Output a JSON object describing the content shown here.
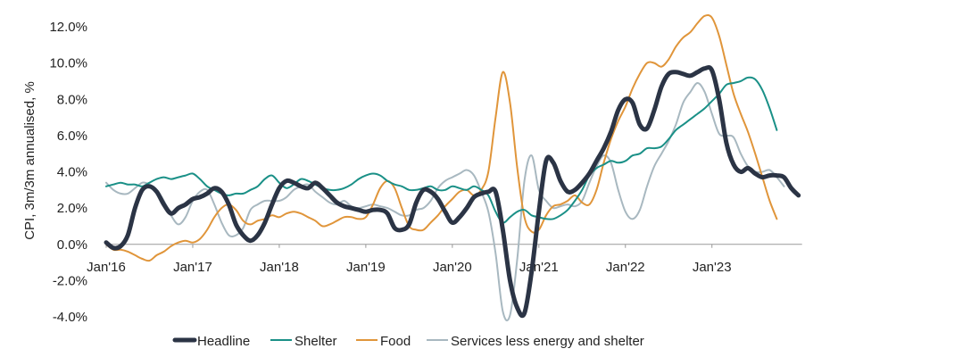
{
  "chart_data": {
    "type": "line",
    "title": "",
    "xlabel": "",
    "ylabel": "CPI, 3m/3m annualised, %",
    "ylim": [
      -4,
      12
    ],
    "yticks": [
      -4,
      -2,
      0,
      2,
      4,
      6,
      8,
      10,
      12
    ],
    "ytick_labels": [
      "-4.0%",
      "-2.0%",
      "0.0%",
      "2.0%",
      "4.0%",
      "6.0%",
      "8.0%",
      "10.0%",
      "12.0%"
    ],
    "xtick_labels": [
      "Jan'16",
      "Jan'17",
      "Jan'18",
      "Jan'19",
      "Jan'20",
      "Jan'21",
      "Jan'22",
      "Jan'23"
    ],
    "x_start": "Jan 2016",
    "x_unit": "months",
    "grid": false,
    "legend_position": "bottom",
    "series": [
      {
        "name": "Headline",
        "color": "#2b3445",
        "width": 5,
        "values": [
          0.1,
          -0.2,
          -0.1,
          0.5,
          2.0,
          3.0,
          3.2,
          2.9,
          2.2,
          1.7,
          2.0,
          2.2,
          2.5,
          2.6,
          2.8,
          3.1,
          2.9,
          2.2,
          1.1,
          0.5,
          0.2,
          0.5,
          1.2,
          2.2,
          3.1,
          3.5,
          3.4,
          3.2,
          3.1,
          3.4,
          3.1,
          2.7,
          2.3,
          2.1,
          2.0,
          1.9,
          1.8,
          1.9,
          1.9,
          1.7,
          0.9,
          0.8,
          1.1,
          2.3,
          3.0,
          2.9,
          2.5,
          1.8,
          1.2,
          1.5,
          2.0,
          2.6,
          2.8,
          2.9,
          2.9,
          0.8,
          -2.0,
          -3.5,
          -3.8,
          -1.5,
          1.8,
          4.6,
          4.5,
          3.5,
          2.9,
          3.0,
          3.4,
          3.9,
          4.6,
          5.3,
          6.2,
          7.4,
          8.0,
          7.8,
          6.6,
          6.4,
          7.4,
          8.7,
          9.4,
          9.5,
          9.4,
          9.3,
          9.5,
          9.7,
          9.6,
          8.0,
          5.6,
          4.4,
          4.0,
          4.2,
          3.9,
          3.7,
          3.8,
          3.8,
          3.7,
          3.1,
          2.7
        ]
      },
      {
        "name": "Shelter",
        "color": "#1a9087",
        "width": 2,
        "values": [
          3.2,
          3.3,
          3.4,
          3.3,
          3.3,
          3.2,
          3.4,
          3.6,
          3.7,
          3.6,
          3.7,
          3.8,
          3.9,
          3.6,
          3.2,
          3.0,
          2.8,
          2.7,
          2.8,
          2.8,
          3.0,
          3.2,
          3.6,
          3.8,
          3.4,
          3.1,
          3.3,
          3.6,
          3.5,
          3.3,
          3.1,
          3.0,
          3.0,
          3.1,
          3.3,
          3.6,
          3.8,
          3.9,
          3.8,
          3.5,
          3.3,
          3.2,
          3.0,
          3.0,
          3.1,
          3.2,
          3.0,
          3.0,
          3.2,
          3.1,
          3.0,
          3.2,
          3.0,
          2.7,
          1.8,
          1.2,
          1.5,
          1.8,
          1.9,
          1.6,
          1.5,
          1.4,
          1.4,
          1.6,
          1.9,
          2.4,
          3.0,
          3.8,
          4.2,
          4.4,
          4.6,
          4.5,
          4.6,
          4.9,
          5.0,
          5.3,
          5.3,
          5.4,
          5.8,
          6.3,
          6.6,
          6.9,
          7.2,
          7.5,
          7.9,
          8.3,
          8.8,
          8.9,
          9.0,
          9.2,
          9.1,
          8.5,
          7.5,
          6.3
        ]
      },
      {
        "name": "Food",
        "color": "#e0953a",
        "width": 2,
        "values": [
          0.0,
          -0.3,
          -0.3,
          -0.4,
          -0.6,
          -0.8,
          -0.9,
          -0.6,
          -0.4,
          -0.1,
          0.1,
          0.2,
          0.1,
          0.3,
          0.8,
          1.5,
          2.0,
          2.2,
          1.9,
          1.3,
          1.1,
          1.3,
          1.4,
          1.6,
          1.5,
          1.7,
          1.8,
          1.7,
          1.5,
          1.3,
          1.0,
          1.1,
          1.3,
          1.5,
          1.5,
          1.4,
          1.5,
          2.2,
          3.1,
          3.5,
          3.1,
          2.0,
          1.0,
          0.8,
          0.8,
          1.2,
          1.6,
          2.1,
          2.5,
          2.9,
          3.0,
          2.7,
          3.0,
          4.0,
          7.0,
          9.5,
          7.8,
          4.2,
          1.5,
          0.7,
          0.8,
          1.6,
          2.1,
          2.2,
          2.4,
          2.7,
          2.3,
          2.2,
          3.0,
          4.5,
          5.8,
          6.8,
          7.6,
          8.6,
          9.4,
          10.0,
          10.0,
          9.8,
          10.2,
          10.9,
          11.4,
          11.7,
          12.2,
          12.6,
          12.5,
          11.5,
          9.9,
          8.3,
          7.2,
          6.2,
          5.0,
          3.7,
          2.4,
          1.4
        ]
      },
      {
        "name": "Services less energy and shelter",
        "color": "#a8b8c0",
        "width": 2,
        "values": [
          3.4,
          3.0,
          2.8,
          2.8,
          3.1,
          3.4,
          3.3,
          3.0,
          2.4,
          1.6,
          1.1,
          1.5,
          2.4,
          2.9,
          3.0,
          2.2,
          1.2,
          0.5,
          0.5,
          0.9,
          1.9,
          2.2,
          2.4,
          2.4,
          2.4,
          2.6,
          3.0,
          3.2,
          3.3,
          2.9,
          2.6,
          2.3,
          2.2,
          2.4,
          2.1,
          2.0,
          2.1,
          2.2,
          2.1,
          2.0,
          1.8,
          1.6,
          1.6,
          1.9,
          2.0,
          2.4,
          3.1,
          3.5,
          3.7,
          3.9,
          4.1,
          3.8,
          2.9,
          1.8,
          -0.5,
          -3.7,
          -3.9,
          -0.8,
          3.5,
          4.9,
          3.0,
          2.4,
          2.0,
          2.1,
          2.2,
          2.1,
          2.4,
          3.4,
          4.3,
          4.9,
          4.5,
          3.0,
          1.8,
          1.4,
          1.9,
          3.2,
          4.3,
          5.0,
          5.7,
          6.6,
          7.8,
          8.4,
          8.9,
          8.4,
          7.2,
          6.1,
          6.0,
          5.9,
          5.0,
          4.3,
          4.0,
          4.0,
          4.1,
          3.7,
          3.2
        ]
      }
    ]
  },
  "legend": {
    "items": [
      {
        "label": "Headline"
      },
      {
        "label": "Shelter"
      },
      {
        "label": "Food"
      },
      {
        "label": "Services less energy and shelter"
      }
    ]
  }
}
